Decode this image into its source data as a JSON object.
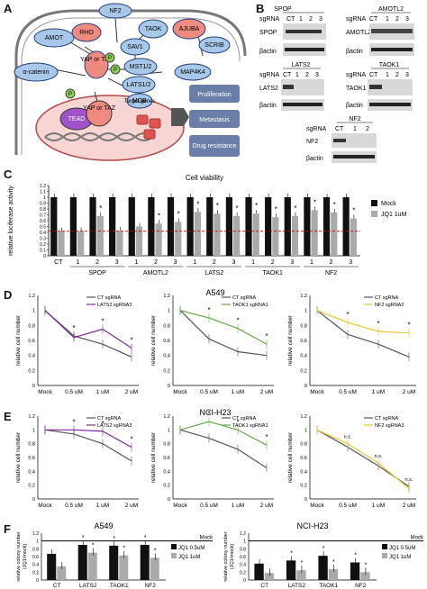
{
  "panels": {
    "A": "A",
    "B": "B",
    "C": "C",
    "D": "D",
    "E": "E",
    "F": "F"
  },
  "pathway": {
    "nodes": {
      "nf2": "NF2",
      "amot": "AMOT",
      "rho": "RHO",
      "taok": "TAOK",
      "ajuba": "AJUBA",
      "sav1": "SAV1",
      "scrib": "SCRIB",
      "yaptaz": "YAP\nor\nTAZ",
      "p": "P",
      "mst": "MST1/2",
      "lats": "LATS1/2",
      "map4k4": "MAP4K4",
      "mob": "MOB",
      "acat": "α-catenin",
      "tead": "TEAD",
      "yaptaz2": "YAP\nor\nTAZ",
      "targets": "Target genes"
    },
    "outcomes": [
      "Proliferation",
      "Metastasis",
      "Drug\nresistance"
    ]
  },
  "blots": {
    "lanes3": [
      "CT",
      "1",
      "2",
      "3"
    ],
    "lanes2": [
      "CT",
      "1",
      "2"
    ],
    "sgrna": "sgRNA",
    "bactin": "βactin",
    "spop": {
      "title": "SPOP",
      "target": "SPOP"
    },
    "amotl2": {
      "title": "AMOTL2",
      "target": "AMOTL2"
    },
    "lats2": {
      "title": "LATS2",
      "target": "LATS2"
    },
    "taok1": {
      "title": "TAOK1",
      "target": "TAOK1"
    },
    "nf2": {
      "title": "NF2",
      "target": "NF2"
    }
  },
  "chart_data": [
    {
      "panel": "C",
      "type": "bar",
      "title": "Cell viability",
      "ylabel": "relative luciferase activity",
      "ylim": [
        0,
        1.2
      ],
      "yticks": [
        "0",
        "0.1",
        "0.2",
        "0.3",
        "0.4",
        "0.5",
        "0.6",
        "0.7",
        "0.8",
        "0.9",
        "1",
        "1.1",
        "1.2"
      ],
      "categories": [
        "CT",
        "1",
        "2",
        "3",
        "1",
        "2",
        "3",
        "1",
        "2",
        "3",
        "1",
        "2",
        "3",
        "1",
        "2",
        "3"
      ],
      "groups": [
        "SPOP",
        "AMOTL2",
        "LATS2",
        "TAOK1",
        "NF2"
      ],
      "series": [
        {
          "name": "Mock",
          "color": "#111111",
          "values": [
            1,
            1,
            1,
            1,
            1,
            1,
            1,
            1,
            1,
            1,
            1,
            1,
            1,
            1,
            1,
            1
          ]
        },
        {
          "name": "JQ1 1uM",
          "color": "#aaaaaa",
          "values": [
            0.42,
            0.42,
            0.68,
            0.43,
            0.5,
            0.55,
            0.58,
            0.75,
            0.72,
            0.68,
            0.72,
            0.66,
            0.68,
            0.78,
            0.74,
            0.64
          ]
        }
      ],
      "significant": [
        2,
        5,
        6,
        7,
        8,
        9,
        10,
        11,
        12,
        13,
        14,
        15
      ]
    },
    {
      "panel": "D",
      "group_title": "A549",
      "type": "line",
      "ylabel": "relative cell number",
      "x": [
        "Mock",
        "0.5 uM",
        "1 uM",
        "2 uM"
      ],
      "ylim": [
        0,
        1.2
      ],
      "yticks": [
        "0",
        "0.2",
        "0.4",
        "0.6",
        "0.8",
        "1",
        "1.2"
      ],
      "series": [
        {
          "name": "CT sgRNA",
          "color": "#555555",
          "values": [
            1,
            0.66,
            0.55,
            0.38
          ]
        },
        {
          "name": "LATS2 sgRNA3",
          "color": "#7b2a9c",
          "values": [
            1,
            0.64,
            0.75,
            0.5
          ]
        }
      ]
    },
    {
      "panel": "D",
      "type": "line",
      "ylabel": "relative cell number",
      "x": [
        "Mock",
        "0.5 uM",
        "1 uM",
        "2 uM"
      ],
      "ylim": [
        0,
        1.2
      ],
      "yticks": [
        "0",
        "0.2",
        "0.4",
        "0.6",
        "0.8",
        "1",
        "1.2"
      ],
      "series": [
        {
          "name": "CT sgRNA",
          "color": "#555555",
          "values": [
            1,
            0.62,
            0.45,
            0.4
          ]
        },
        {
          "name": "TAOK1 sgRNA1",
          "color": "#6aa84f",
          "values": [
            1,
            0.9,
            0.76,
            0.55
          ]
        }
      ]
    },
    {
      "panel": "D",
      "type": "line",
      "ylabel": "relative cell number",
      "x": [
        "Mock",
        "0.5 uM",
        "1 uM",
        "2 uM"
      ],
      "ylim": [
        0,
        1.2
      ],
      "yticks": [
        "0",
        "0.2",
        "0.4",
        "0.6",
        "0.8",
        "1",
        "1.2"
      ],
      "series": [
        {
          "name": "CT sgRNA",
          "color": "#555555",
          "values": [
            1,
            0.68,
            0.55,
            0.38
          ]
        },
        {
          "name": "NF2 sgRNA2",
          "color": "#e8c832",
          "values": [
            1,
            0.84,
            0.72,
            0.7
          ]
        }
      ]
    },
    {
      "panel": "E",
      "group_title": "NCI-H23",
      "type": "line",
      "ylabel": "relative cell number",
      "x": [
        "Mock",
        "0.5 uM",
        "1 uM",
        "2 uM"
      ],
      "ylim": [
        0,
        1.2
      ],
      "yticks": [
        "0",
        "0.2",
        "0.4",
        "0.6",
        "0.8",
        "1",
        "1.2"
      ],
      "series": [
        {
          "name": "CT sgRNA",
          "color": "#555555",
          "values": [
            1,
            0.94,
            0.8,
            0.55
          ]
        },
        {
          "name": "LATS2 sgRNA3",
          "color": "#7b2a9c",
          "values": [
            1,
            1.0,
            0.98,
            0.75
          ]
        }
      ]
    },
    {
      "panel": "E",
      "type": "line",
      "ylabel": "relative cell number",
      "x": [
        "Mock",
        "0.5 uM",
        "1 uM",
        "2 uM"
      ],
      "ylim": [
        0,
        1.2
      ],
      "yticks": [
        "0",
        "0.2",
        "0.4",
        "0.6",
        "0.8",
        "1",
        "1.2"
      ],
      "series": [
        {
          "name": "CT sgRNA",
          "color": "#555555",
          "values": [
            1,
            0.88,
            0.72,
            0.45
          ]
        },
        {
          "name": "TAOK1 sgRNA1",
          "color": "#6aa84f",
          "values": [
            1,
            1.12,
            1.0,
            0.78
          ]
        }
      ]
    },
    {
      "panel": "E",
      "type": "line",
      "ylabel": "relative cell number",
      "x": [
        "Mock",
        "0.5 uM",
        "1 uM",
        "2 uM"
      ],
      "ylim": [
        0,
        1.2
      ],
      "yticks": [
        "0",
        "0.2",
        "0.4",
        "0.6",
        "0.8",
        "1",
        "1.2"
      ],
      "annotations": [
        "n.s.",
        "n.s.",
        "n.s."
      ],
      "series": [
        {
          "name": "CT sgRNA",
          "color": "#555555",
          "values": [
            1,
            0.75,
            0.48,
            0.18
          ]
        },
        {
          "name": "NF2 sgRNA3",
          "color": "#e8c832",
          "values": [
            1,
            0.8,
            0.52,
            0.15
          ]
        }
      ]
    },
    {
      "panel": "F",
      "title": "A549",
      "type": "bar",
      "ylabel": "relative colony number\n(JQ1/mock)",
      "categories": [
        "CT",
        "LATS2",
        "TAOK1",
        "NF2"
      ],
      "ylim": [
        0,
        1.2
      ],
      "yticks": [
        "0",
        "0.2",
        "0.4",
        "0.6",
        "0.8",
        "1",
        "1.2"
      ],
      "reference": "Mock",
      "series": [
        {
          "name": "JQ1 0.5uM",
          "color": "#111111",
          "values": [
            0.67,
            0.9,
            0.88,
            0.9
          ]
        },
        {
          "name": "JQ1 1uM",
          "color": "#aaaaaa",
          "values": [
            0.35,
            0.7,
            0.63,
            0.57
          ]
        }
      ]
    },
    {
      "panel": "F",
      "title": "NCI-H23",
      "type": "bar",
      "ylabel": "relative colony number\n(JQ1/mock)",
      "categories": [
        "CT",
        "LATS2",
        "TAOK1",
        "NF2"
      ],
      "ylim": [
        0,
        1.2
      ],
      "yticks": [
        "0",
        "0.2",
        "0.4",
        "0.6",
        "0.8",
        "1",
        "1.2"
      ],
      "reference": "Mock",
      "series": [
        {
          "name": "JQ1 0.5uM",
          "color": "#111111",
          "values": [
            0.42,
            0.5,
            0.62,
            0.45
          ]
        },
        {
          "name": "JQ1 1uM",
          "color": "#aaaaaa",
          "values": [
            0.18,
            0.25,
            0.28,
            0.2
          ]
        }
      ]
    }
  ]
}
